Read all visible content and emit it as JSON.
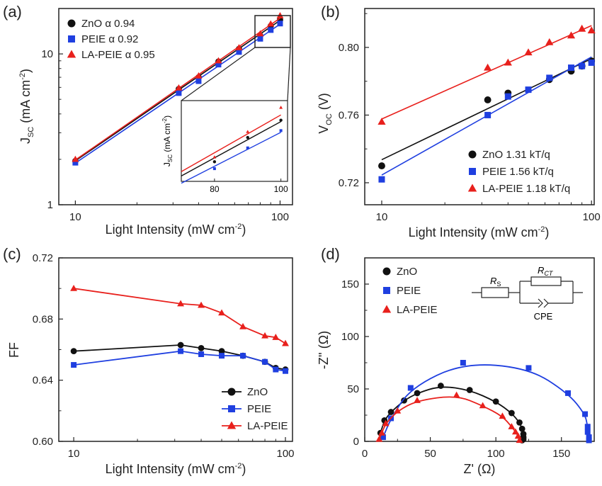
{
  "colors": {
    "zno": "#111111",
    "peie": "#1f3fe0",
    "la_peie": "#e8201c"
  },
  "chart_data": [
    {
      "panel": "(a)",
      "type": "scatter",
      "x_scale": "log",
      "y_scale": "log",
      "xlabel": "Light Intensity (mW cm",
      "xlabel_sup": "-2",
      "xlabel_end": ")",
      "ylabel_main": "J",
      "ylabel_sub": "SC",
      "ylabel_rest": " (mA cm",
      "ylabel_sup": "-2",
      "ylabel_end": ")",
      "xlim": [
        8.3,
        115
      ],
      "ylim": [
        1,
        20
      ],
      "x_ticks": [
        10,
        100
      ],
      "x_tick_labels": [
        "10",
        "100"
      ],
      "y_ticks": [
        1,
        10
      ],
      "y_tick_labels": [
        "1",
        "10"
      ],
      "legend_position": "top-left",
      "series": [
        {
          "name": "ZnO α 0.94",
          "marker": "circle",
          "x": [
            10,
            32,
            40,
            50,
            63,
            80,
            90,
            100
          ],
          "y": [
            1.95,
            5.85,
            7.0,
            8.9,
            10.8,
            13.2,
            15.3,
            16.8
          ]
        },
        {
          "name": "PEIE α 0.92",
          "marker": "square",
          "x": [
            10,
            32,
            40,
            50,
            63,
            80,
            90,
            100
          ],
          "y": [
            1.9,
            5.5,
            6.6,
            8.5,
            10.3,
            12.6,
            14.4,
            15.9
          ]
        },
        {
          "name": "LA-PEIE α 0.95",
          "marker": "triangle",
          "x": [
            10,
            32,
            40,
            50,
            63,
            80,
            90,
            100
          ],
          "y": [
            2.0,
            5.95,
            7.15,
            9.0,
            11.0,
            13.6,
            15.8,
            17.9
          ]
        }
      ],
      "inset": {
        "ylabel_main": "J",
        "ylabel_sub": "SC",
        "ylabel_rest": " (mA cm",
        "ylabel_sup": "-2",
        "ylabel_end": ")",
        "x_tick_labels": [
          "80",
          "100"
        ],
        "x_ticks": [
          80,
          100
        ],
        "xlim": [
          70,
          102
        ],
        "ylim": [
          11.5,
          18.5
        ]
      }
    },
    {
      "panel": "(b)",
      "type": "scatter",
      "x_scale": "log",
      "xlabel": "Light Intensity (mW cm",
      "xlabel_sup": "-2",
      "xlabel_end": ")",
      "ylabel_main": "V",
      "ylabel_sub": "OC",
      "ylabel_rest": " (V)",
      "xlim": [
        8.3,
        103
      ],
      "ylim": [
        0.707,
        0.823
      ],
      "x_ticks": [
        10,
        100
      ],
      "x_tick_labels": [
        "10",
        "100"
      ],
      "y_ticks": [
        0.72,
        0.76,
        0.8
      ],
      "y_tick_labels": [
        "0.72",
        "0.76",
        "0.80"
      ],
      "legend_position": "bottom-right",
      "series": [
        {
          "name": "ZnO 1.31 kT/q",
          "marker": "circle",
          "x": [
            10,
            32,
            40,
            63,
            80,
            90,
            100
          ],
          "y": [
            0.73,
            0.769,
            0.773,
            0.781,
            0.786,
            0.789,
            0.792
          ]
        },
        {
          "name": "PEIE 1.56 kT/q",
          "marker": "square",
          "x": [
            10,
            32,
            40,
            50,
            63,
            80,
            90,
            100
          ],
          "y": [
            0.722,
            0.76,
            0.771,
            0.775,
            0.782,
            0.788,
            0.789,
            0.791
          ]
        },
        {
          "name": "LA-PEIE 1.18 kT/q",
          "marker": "triangle",
          "x": [
            10,
            32,
            40,
            50,
            63,
            80,
            90,
            100
          ],
          "y": [
            0.756,
            0.788,
            0.791,
            0.797,
            0.803,
            0.807,
            0.811,
            0.81
          ]
        }
      ]
    },
    {
      "panel": "(c)",
      "type": "line",
      "x_scale": "log",
      "xlabel": "Light Intensity (mW cm",
      "xlabel_sup": "-2",
      "xlabel_end": ")",
      "ylabel_main": "FF",
      "xlim": [
        8.5,
        108
      ],
      "ylim": [
        0.6,
        0.72
      ],
      "x_ticks": [
        10,
        100
      ],
      "x_tick_labels": [
        "10",
        "100"
      ],
      "y_ticks": [
        0.6,
        0.64,
        0.68,
        0.72
      ],
      "y_tick_labels": [
        "0.60",
        "0.64",
        "0.68",
        "0.72"
      ],
      "legend_position": "bottom-right",
      "series": [
        {
          "name": "ZnO",
          "marker": "circle",
          "x": [
            10,
            32,
            40,
            50,
            63,
            80,
            90,
            100
          ],
          "y": [
            0.659,
            0.663,
            0.661,
            0.659,
            0.656,
            0.652,
            0.648,
            0.647
          ]
        },
        {
          "name": "PEIE",
          "marker": "square",
          "x": [
            10,
            32,
            40,
            50,
            63,
            80,
            90,
            100
          ],
          "y": [
            0.65,
            0.659,
            0.657,
            0.656,
            0.656,
            0.652,
            0.647,
            0.646
          ]
        },
        {
          "name": "LA-PEIE",
          "marker": "triangle",
          "x": [
            10,
            32,
            40,
            50,
            63,
            80,
            90,
            100
          ],
          "y": [
            0.7,
            0.69,
            0.689,
            0.684,
            0.675,
            0.669,
            0.668,
            0.664
          ]
        }
      ]
    },
    {
      "panel": "(d)",
      "type": "scatter",
      "xlabel": "Z' (Ω)",
      "ylabel_main": "-Z'' (Ω)",
      "xlim": [
        0,
        175
      ],
      "ylim": [
        0,
        175
      ],
      "x_ticks": [
        0,
        50,
        100,
        150
      ],
      "x_tick_labels": [
        "0",
        "50",
        "100",
        "150"
      ],
      "y_ticks": [
        0,
        50,
        100,
        150
      ],
      "y_tick_labels": [
        "0",
        "50",
        "100",
        "150"
      ],
      "legend_position": "top-left",
      "series": [
        {
          "name": "ZnO",
          "marker": "circle",
          "x": [
            12,
            15,
            20,
            30,
            40,
            58,
            80,
            100,
            112,
            118,
            120,
            121,
            121,
            121,
            120
          ],
          "y": [
            8,
            20,
            28,
            39,
            46,
            53,
            49,
            38,
            27,
            18,
            12,
            7,
            4,
            2,
            1
          ]
        },
        {
          "name": "PEIE",
          "marker": "square",
          "x": [
            14,
            20,
            35,
            75,
            125,
            155,
            168,
            170,
            170,
            171,
            171
          ],
          "y": [
            4,
            22,
            51,
            75,
            70,
            46,
            26,
            14,
            9,
            4,
            1
          ]
        },
        {
          "name": "LA-PEIE",
          "marker": "triangle",
          "x": [
            11,
            13,
            16,
            25,
            40,
            70,
            90,
            105,
            112,
            115,
            117,
            118
          ],
          "y": [
            2,
            8,
            17,
            29,
            39,
            44,
            34,
            24,
            14,
            9,
            5,
            1
          ]
        }
      ],
      "circuit": {
        "rs": "R",
        "rs_sub": "S",
        "rct": "R",
        "rct_sub": "CT",
        "cpe": "CPE"
      }
    }
  ]
}
